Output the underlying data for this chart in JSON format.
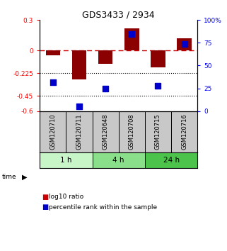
{
  "title": "GDS3433 / 2934",
  "samples": [
    "GSM120710",
    "GSM120711",
    "GSM120648",
    "GSM120708",
    "GSM120715",
    "GSM120716"
  ],
  "log10_ratio": [
    -0.05,
    -0.29,
    -0.13,
    0.22,
    -0.17,
    0.12
  ],
  "percentile_rank": [
    32,
    5,
    25,
    85,
    28,
    74
  ],
  "time_groups": [
    {
      "label": "1 h",
      "start": 0,
      "end": 2,
      "color": "#c8f5c8"
    },
    {
      "label": "4 h",
      "start": 2,
      "end": 4,
      "color": "#8adf8a"
    },
    {
      "label": "24 h",
      "start": 4,
      "end": 6,
      "color": "#4cc44c"
    }
  ],
  "ylim_left": [
    -0.6,
    0.3
  ],
  "ylim_right": [
    0,
    100
  ],
  "yticks_left": [
    0.3,
    0.0,
    -0.225,
    -0.45,
    -0.6
  ],
  "yticks_right": [
    100,
    75,
    50,
    25,
    0
  ],
  "ytick_labels_left": [
    "0.3",
    "0",
    "-0.225",
    "-0.45",
    "-0.6"
  ],
  "ytick_labels_right": [
    "100%",
    "75",
    "50",
    "25",
    "0"
  ],
  "hlines_dotted": [
    -0.225,
    -0.45
  ],
  "hline_zero_color": "#cc0000",
  "bar_color": "#8b0000",
  "dot_color": "#0000cc",
  "bar_width": 0.55,
  "dot_size": 40,
  "sample_bg": "#c8c8c8",
  "legend_red": "#cc0000",
  "legend_blue": "#0000cc"
}
